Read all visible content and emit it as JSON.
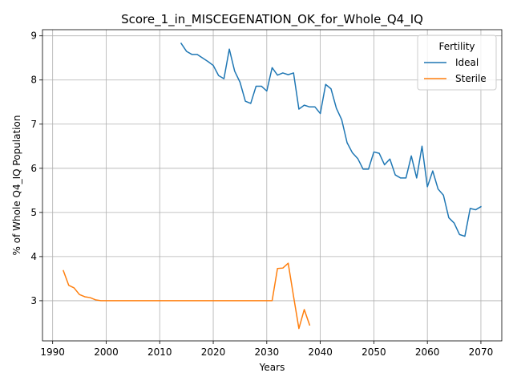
{
  "chart_data": {
    "type": "line",
    "title": "Score_1_in_MISCEGENATION_OK_for_Whole_Q4_IQ",
    "xlabel": "Years",
    "ylabel": "% of Whole Q4_IQ Population",
    "xlim": [
      1988.1,
      2073.9
    ],
    "ylim": [
      2.09,
      9.14
    ],
    "xticks": [
      1990,
      2000,
      2010,
      2020,
      2030,
      2040,
      2050,
      2060,
      2070
    ],
    "yticks": [
      3,
      4,
      5,
      6,
      7,
      8,
      9
    ],
    "grid": true,
    "legend": {
      "title": "Fertility",
      "position": "top-right"
    },
    "series": [
      {
        "name": "Ideal",
        "color": "#1f77b4",
        "points": [
          [
            2014,
            8.83
          ],
          [
            2015,
            8.65
          ],
          [
            2016,
            8.58
          ],
          [
            2017,
            8.58
          ],
          [
            2018,
            8.5
          ],
          [
            2019,
            8.42
          ],
          [
            2020,
            8.33
          ],
          [
            2021,
            8.1
          ],
          [
            2022,
            8.03
          ],
          [
            2023,
            8.7
          ],
          [
            2024,
            8.2
          ],
          [
            2025,
            7.95
          ],
          [
            2026,
            7.52
          ],
          [
            2027,
            7.47
          ],
          [
            2028,
            7.86
          ],
          [
            2029,
            7.86
          ],
          [
            2030,
            7.75
          ],
          [
            2031,
            8.28
          ],
          [
            2032,
            8.11
          ],
          [
            2033,
            8.16
          ],
          [
            2034,
            8.12
          ],
          [
            2035,
            8.16
          ],
          [
            2036,
            7.34
          ],
          [
            2037,
            7.43
          ],
          [
            2038,
            7.39
          ],
          [
            2039,
            7.39
          ],
          [
            2040,
            7.24
          ],
          [
            2041,
            7.9
          ],
          [
            2042,
            7.8
          ],
          [
            2043,
            7.36
          ],
          [
            2044,
            7.1
          ],
          [
            2045,
            6.58
          ],
          [
            2046,
            6.35
          ],
          [
            2047,
            6.22
          ],
          [
            2048,
            5.98
          ],
          [
            2049,
            5.98
          ],
          [
            2050,
            6.37
          ],
          [
            2051,
            6.34
          ],
          [
            2052,
            6.08
          ],
          [
            2053,
            6.21
          ],
          [
            2054,
            5.85
          ],
          [
            2055,
            5.78
          ],
          [
            2056,
            5.78
          ],
          [
            2057,
            6.28
          ],
          [
            2058,
            5.78
          ],
          [
            2059,
            6.5
          ],
          [
            2060,
            5.58
          ],
          [
            2061,
            5.94
          ],
          [
            2062,
            5.53
          ],
          [
            2063,
            5.39
          ],
          [
            2064,
            4.88
          ],
          [
            2065,
            4.76
          ],
          [
            2066,
            4.5
          ],
          [
            2067,
            4.46
          ],
          [
            2068,
            5.09
          ],
          [
            2069,
            5.06
          ],
          [
            2070,
            5.13
          ]
        ]
      },
      {
        "name": "Sterile",
        "color": "#ff7f0e",
        "points": [
          [
            1992,
            3.68
          ],
          [
            1993,
            3.35
          ],
          [
            1994,
            3.29
          ],
          [
            1995,
            3.14
          ],
          [
            1996,
            3.09
          ],
          [
            1997,
            3.07
          ],
          [
            1998,
            3.02
          ],
          [
            1999,
            3.0
          ],
          [
            2000,
            3.0
          ],
          [
            2001,
            3.0
          ],
          [
            2002,
            3.0
          ],
          [
            2003,
            3.0
          ],
          [
            2004,
            3.0
          ],
          [
            2005,
            3.0
          ],
          [
            2006,
            3.0
          ],
          [
            2007,
            3.0
          ],
          [
            2008,
            3.0
          ],
          [
            2009,
            3.0
          ],
          [
            2010,
            3.0
          ],
          [
            2011,
            3.0
          ],
          [
            2012,
            3.0
          ],
          [
            2013,
            3.0
          ],
          [
            2014,
            3.0
          ],
          [
            2015,
            3.0
          ],
          [
            2016,
            3.0
          ],
          [
            2017,
            3.0
          ],
          [
            2018,
            3.0
          ],
          [
            2019,
            3.0
          ],
          [
            2020,
            3.0
          ],
          [
            2021,
            3.0
          ],
          [
            2022,
            3.0
          ],
          [
            2023,
            3.0
          ],
          [
            2024,
            3.0
          ],
          [
            2025,
            3.0
          ],
          [
            2026,
            3.0
          ],
          [
            2027,
            3.0
          ],
          [
            2028,
            3.0
          ],
          [
            2029,
            3.0
          ],
          [
            2030,
            3.0
          ],
          [
            2031,
            3.0
          ],
          [
            2032,
            3.73
          ],
          [
            2033,
            3.74
          ],
          [
            2034,
            3.85
          ],
          [
            2035,
            3.1
          ],
          [
            2036,
            2.37
          ],
          [
            2037,
            2.8
          ],
          [
            2038,
            2.45
          ]
        ]
      }
    ]
  }
}
